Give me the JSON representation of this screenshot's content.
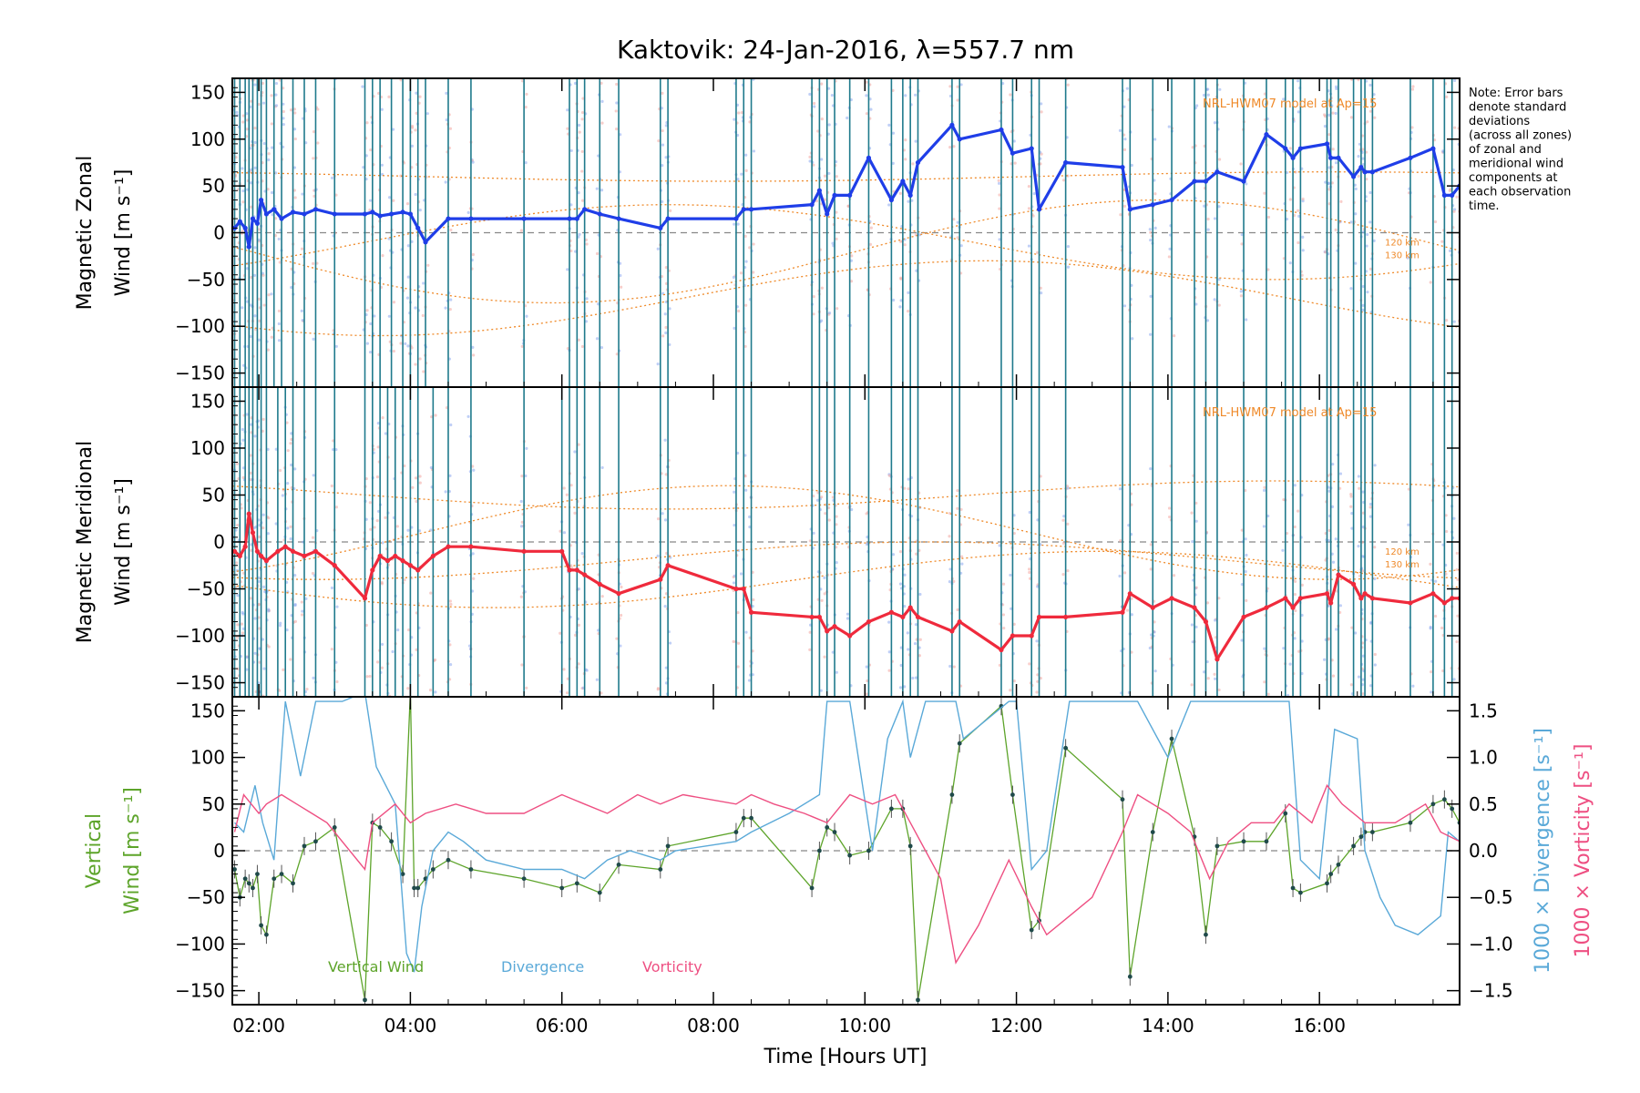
{
  "title": "Kaktovik: 24-Jan-2016, λ=557.7 nm",
  "note": [
    "Note: Error bars",
    "denote standard",
    "deviations",
    "(across all zones)",
    "of zonal and",
    "meridional wind",
    "components at",
    "each observation",
    "time."
  ],
  "colors": {
    "zonal": "#1f3ee8",
    "meridional": "#ef2a3c",
    "vertical": "#5da42a",
    "divergence": "#5aa9d8",
    "vorticity": "#ee4f82",
    "model": "#ef8a2a",
    "errorbar": "#1f7a8c",
    "zero": "#888888"
  },
  "chart_data": [
    {
      "type": "line",
      "xlabel": "",
      "ylabel_lines": [
        "Magnetic Zonal",
        "Wind [m s⁻¹]"
      ],
      "xlim": [
        1.65,
        17.85
      ],
      "ylim": [
        -165,
        165
      ],
      "yticks": [
        -150,
        -100,
        -50,
        0,
        50,
        100,
        150
      ],
      "ytick_labels": [
        "−150",
        "−100",
        "−50",
        "0",
        "50",
        "100",
        "150"
      ],
      "model_label": "NRL-HWM07 model at Ap=15",
      "model_alt_labels": [
        "120 km",
        "130 km"
      ],
      "series": [
        {
          "x": [
            1.68,
            1.75,
            1.82,
            1.87,
            1.92,
            1.98,
            2.03,
            2.1,
            2.2,
            2.3,
            2.45,
            2.6,
            2.75,
            3.0,
            3.4,
            3.5,
            3.6,
            3.75,
            3.9,
            4.0,
            4.1,
            4.2,
            4.5,
            4.8,
            5.5,
            6.1,
            6.2,
            6.3,
            6.5,
            6.75,
            7.3,
            7.4,
            8.3,
            8.4,
            8.5,
            9.3,
            9.4,
            9.5,
            9.6,
            9.8,
            10.05,
            10.35,
            10.5,
            10.6,
            10.7,
            11.15,
            11.25,
            11.8,
            11.95,
            12.2,
            12.3,
            12.65,
            13.4,
            13.5,
            13.8,
            14.05,
            14.35,
            14.5,
            14.65,
            15.0,
            15.3,
            15.55,
            15.65,
            15.75,
            16.1,
            16.15,
            16.25,
            16.45,
            16.55,
            16.6,
            16.7,
            17.2,
            17.5,
            17.65,
            17.75,
            17.85
          ],
          "y": [
            5,
            12,
            5,
            -15,
            15,
            10,
            35,
            20,
            25,
            15,
            22,
            20,
            25,
            20,
            20,
            22,
            18,
            20,
            22,
            20,
            5,
            -10,
            15,
            15,
            15,
            15,
            15,
            25,
            20,
            15,
            5,
            15,
            15,
            25,
            25,
            30,
            45,
            20,
            40,
            40,
            80,
            35,
            55,
            40,
            75,
            115,
            100,
            110,
            85,
            90,
            25,
            75,
            70,
            25,
            30,
            35,
            55,
            55,
            65,
            55,
            105,
            90,
            80,
            90,
            95,
            80,
            80,
            60,
            70,
            65,
            65,
            80,
            90,
            40,
            40,
            50
          ]
        }
      ]
    },
    {
      "type": "line",
      "xlabel": "",
      "ylabel_lines": [
        "Magnetic Meridional",
        "Wind [m s⁻¹]"
      ],
      "xlim": [
        1.65,
        17.85
      ],
      "ylim": [
        -165,
        165
      ],
      "yticks": [
        -150,
        -100,
        -50,
        0,
        50,
        100,
        150
      ],
      "ytick_labels": [
        "−150",
        "−100",
        "−50",
        "0",
        "50",
        "100",
        "150"
      ],
      "model_label": "NRL-HWM07 model at Ap=15",
      "model_alt_labels": [
        "120 km",
        "130 km"
      ],
      "series": [
        {
          "x": [
            1.68,
            1.75,
            1.82,
            1.87,
            1.92,
            1.98,
            2.03,
            2.1,
            2.25,
            2.35,
            2.45,
            2.6,
            2.75,
            3.0,
            3.4,
            3.5,
            3.6,
            3.7,
            3.8,
            3.9,
            4.0,
            4.1,
            4.3,
            4.5,
            4.8,
            5.5,
            6.0,
            6.1,
            6.2,
            6.3,
            6.5,
            6.75,
            7.3,
            7.4,
            8.3,
            8.4,
            8.5,
            9.3,
            9.4,
            9.5,
            9.6,
            9.8,
            10.05,
            10.35,
            10.5,
            10.6,
            10.7,
            11.15,
            11.25,
            11.8,
            11.95,
            12.2,
            12.3,
            12.65,
            13.4,
            13.5,
            13.8,
            14.05,
            14.35,
            14.5,
            14.65,
            15.0,
            15.3,
            15.55,
            15.65,
            15.75,
            16.1,
            16.15,
            16.25,
            16.45,
            16.55,
            16.6,
            16.7,
            17.2,
            17.5,
            17.65,
            17.75,
            17.85
          ],
          "y": [
            -10,
            -15,
            -5,
            30,
            10,
            -10,
            -15,
            -20,
            -10,
            -5,
            -10,
            -15,
            -10,
            -25,
            -60,
            -30,
            -15,
            -20,
            -15,
            -20,
            -25,
            -30,
            -15,
            -5,
            -5,
            -10,
            -10,
            -30,
            -30,
            -35,
            -45,
            -55,
            -40,
            -25,
            -50,
            -50,
            -75,
            -80,
            -80,
            -95,
            -90,
            -100,
            -85,
            -75,
            -80,
            -70,
            -80,
            -95,
            -85,
            -115,
            -100,
            -100,
            -80,
            -80,
            -75,
            -55,
            -70,
            -60,
            -70,
            -85,
            -125,
            -80,
            -70,
            -60,
            -70,
            -60,
            -55,
            -65,
            -35,
            -45,
            -60,
            -55,
            -60,
            -65,
            -55,
            -65,
            -60,
            -60
          ]
        }
      ]
    },
    {
      "type": "line",
      "xlabel": "Time [Hours UT]",
      "ylabel_lines": [
        "Vertical",
        "Wind [m s⁻¹]"
      ],
      "y2label_lines": [
        "1000 × Divergence [s⁻¹]",
        "1000 × Vorticity [s⁻¹]"
      ],
      "xlim": [
        1.65,
        17.85
      ],
      "xticks": [
        2,
        4,
        6,
        8,
        10,
        12,
        14,
        16
      ],
      "xtick_labels": [
        "02:00",
        "04:00",
        "06:00",
        "08:00",
        "10:00",
        "12:00",
        "14:00",
        "16:00"
      ],
      "ylim": [
        -165,
        165
      ],
      "yticks": [
        -150,
        -100,
        -50,
        0,
        50,
        100,
        150
      ],
      "ytick_labels": [
        "−150",
        "−100",
        "−50",
        "0",
        "50",
        "100",
        "150"
      ],
      "y2lim": [
        -1.65,
        1.65
      ],
      "y2ticks": [
        -1.5,
        -1.0,
        -0.5,
        0,
        0.5,
        1.0,
        1.5
      ],
      "y2tick_labels": [
        "−1.5",
        "−1.0",
        "−0.5",
        "0.0",
        "0.5",
        "1.0",
        "1.5"
      ],
      "legend": [
        "Vertical Wind",
        "Divergence",
        "Vorticity"
      ],
      "series": [
        {
          "name": "Vertical Wind",
          "axis": "left",
          "x": [
            1.68,
            1.75,
            1.82,
            1.87,
            1.92,
            1.98,
            2.03,
            2.1,
            2.2,
            2.3,
            2.45,
            2.6,
            2.75,
            3.0,
            3.4,
            3.5,
            3.6,
            3.75,
            3.9,
            4.0,
            4.05,
            4.1,
            4.2,
            4.3,
            4.5,
            4.8,
            5.5,
            6.0,
            6.2,
            6.5,
            6.75,
            7.3,
            7.4,
            8.3,
            8.4,
            8.5,
            9.3,
            9.4,
            9.5,
            9.6,
            9.8,
            10.05,
            10.35,
            10.5,
            10.6,
            10.7,
            11.15,
            11.25,
            11.8,
            11.95,
            12.2,
            12.3,
            12.65,
            13.4,
            13.5,
            13.8,
            14.05,
            14.35,
            14.5,
            14.65,
            15.0,
            15.3,
            15.55,
            15.65,
            15.75,
            16.1,
            16.15,
            16.25,
            16.45,
            16.55,
            16.6,
            16.7,
            17.2,
            17.5,
            17.65,
            17.75,
            17.85
          ],
          "y": [
            -20,
            -50,
            -30,
            -35,
            -40,
            -25,
            -80,
            -90,
            -30,
            -25,
            -35,
            5,
            10,
            25,
            -160,
            30,
            25,
            10,
            -25,
            170,
            -40,
            -40,
            -30,
            -20,
            -10,
            -20,
            -30,
            -40,
            -35,
            -45,
            -15,
            -20,
            5,
            20,
            35,
            35,
            -40,
            0,
            25,
            20,
            -5,
            0,
            45,
            45,
            5,
            -160,
            60,
            115,
            155,
            60,
            -85,
            -75,
            110,
            55,
            -135,
            20,
            120,
            15,
            -90,
            5,
            10,
            10,
            40,
            -40,
            -45,
            -35,
            -25,
            -15,
            5,
            15,
            20,
            20,
            30,
            50,
            55,
            45,
            30
          ]
        },
        {
          "name": "Divergence",
          "axis": "right",
          "x": [
            1.68,
            1.8,
            1.95,
            2.05,
            2.2,
            2.35,
            2.55,
            2.75,
            3.1,
            3.4,
            3.55,
            3.8,
            3.95,
            4.05,
            4.15,
            4.3,
            4.5,
            4.7,
            5.0,
            5.5,
            6.0,
            6.3,
            6.6,
            6.9,
            7.3,
            7.5,
            8.3,
            8.5,
            9.0,
            9.4,
            9.5,
            9.8,
            10.1,
            10.3,
            10.5,
            10.6,
            10.8,
            11.1,
            11.2,
            11.3,
            11.9,
            12.0,
            12.2,
            12.4,
            12.7,
            13.0,
            13.4,
            13.5,
            13.6,
            14.0,
            14.3,
            14.55,
            14.75,
            15.0,
            15.3,
            15.55,
            15.6,
            15.75,
            16.0,
            16.2,
            16.5,
            16.6,
            16.8,
            17.0,
            17.3,
            17.6,
            17.7,
            17.85
          ],
          "y": [
            0.3,
            0.2,
            0.7,
            0.3,
            -0.1,
            1.6,
            0.8,
            1.6,
            1.6,
            1.7,
            0.9,
            0.5,
            -1.1,
            -1.3,
            -0.6,
            0.0,
            0.2,
            0.1,
            -0.1,
            -0.2,
            -0.2,
            -0.3,
            -0.1,
            0.0,
            -0.1,
            0.0,
            0.1,
            0.2,
            0.4,
            0.6,
            1.6,
            1.6,
            0.0,
            1.2,
            1.6,
            1.0,
            1.6,
            1.6,
            1.6,
            1.2,
            1.6,
            1.6,
            -0.2,
            0.0,
            1.6,
            1.6,
            1.6,
            1.6,
            1.6,
            1.0,
            1.6,
            1.6,
            1.6,
            1.6,
            1.6,
            1.6,
            1.6,
            -0.1,
            -0.3,
            1.3,
            1.2,
            0.0,
            -0.5,
            -0.8,
            -0.9,
            -0.7,
            0.2,
            0.1
          ]
        },
        {
          "name": "Vorticity",
          "axis": "right",
          "x": [
            1.68,
            1.8,
            2.0,
            2.1,
            2.3,
            2.5,
            2.7,
            2.9,
            3.4,
            3.5,
            3.8,
            4.0,
            4.2,
            4.6,
            5.0,
            5.5,
            6.0,
            6.3,
            6.6,
            7.0,
            7.3,
            7.6,
            8.3,
            8.5,
            8.8,
            9.2,
            9.5,
            9.8,
            10.1,
            10.4,
            10.6,
            11.0,
            11.2,
            11.5,
            11.9,
            12.2,
            12.4,
            12.7,
            13.0,
            13.4,
            13.6,
            14.0,
            14.3,
            14.55,
            14.8,
            15.1,
            15.4,
            15.6,
            15.9,
            16.1,
            16.3,
            16.6,
            17.0,
            17.4,
            17.6,
            17.85
          ],
          "y": [
            0.2,
            0.6,
            0.4,
            0.5,
            0.6,
            0.5,
            0.4,
            0.3,
            -0.2,
            0.3,
            0.5,
            0.3,
            0.4,
            0.5,
            0.4,
            0.4,
            0.6,
            0.5,
            0.4,
            0.6,
            0.5,
            0.6,
            0.5,
            0.6,
            0.5,
            0.4,
            0.3,
            0.6,
            0.5,
            0.6,
            0.3,
            -0.3,
            -1.2,
            -0.8,
            -0.1,
            -0.6,
            -0.9,
            -0.7,
            -0.5,
            0.2,
            0.6,
            0.4,
            0.2,
            -0.3,
            0.1,
            0.3,
            0.3,
            0.5,
            0.3,
            0.7,
            0.5,
            0.3,
            0.3,
            0.5,
            0.2,
            0.1
          ]
        }
      ]
    }
  ]
}
